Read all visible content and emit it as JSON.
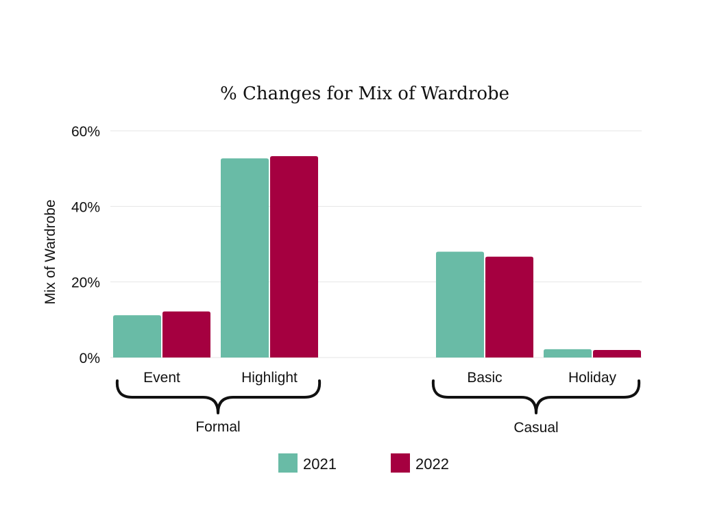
{
  "chart_data": {
    "type": "bar",
    "title": "% Changes for Mix of Wardrobe",
    "ylabel": "Mix of Wardrobe",
    "xlabel": "",
    "ylim": [
      0,
      60
    ],
    "yticks": [
      0,
      20,
      40,
      60
    ],
    "ytick_labels": [
      "0%",
      "20%",
      "40%",
      "60%"
    ],
    "grid": true,
    "legend_position": "bottom",
    "categories": [
      "Event",
      "Highlight",
      "Basic",
      "Holiday"
    ],
    "groups": [
      {
        "label": "Formal",
        "categories": [
          "Event",
          "Highlight"
        ]
      },
      {
        "label": "Casual",
        "categories": [
          "Basic",
          "Holiday"
        ]
      }
    ],
    "series": [
      {
        "name": "2021",
        "color": "#69bba6",
        "values": [
          11.2,
          52.7,
          28.0,
          2.2
        ]
      },
      {
        "name": "2022",
        "color": "#a50040",
        "values": [
          12.2,
          53.3,
          26.7,
          2.0
        ]
      }
    ]
  }
}
